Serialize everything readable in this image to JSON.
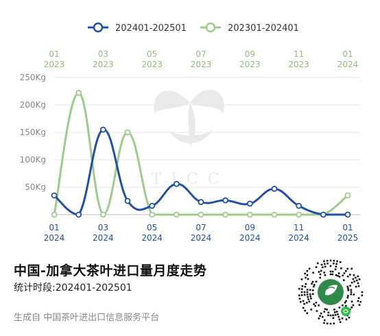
{
  "chart_data": {
    "type": "line",
    "title": "中国-加拿大茶叶进口量月度走势",
    "subtitle": "统计时段:202401-202501",
    "ylim": [
      0,
      250
    ],
    "yticks": [
      0,
      50,
      100,
      150,
      200,
      250
    ],
    "ytick_labels": [
      "",
      "50Kg",
      "100Kg",
      "150Kg",
      "200Kg",
      "250Kg"
    ],
    "grid": true,
    "legend_position": "top",
    "bottom_axis_ticks": [
      {
        "index": 0,
        "month": "01",
        "year": "2024"
      },
      {
        "index": 2,
        "month": "03",
        "year": "2024"
      },
      {
        "index": 4,
        "month": "05",
        "year": "2024"
      },
      {
        "index": 6,
        "month": "07",
        "year": "2024"
      },
      {
        "index": 8,
        "month": "09",
        "year": "2024"
      },
      {
        "index": 10,
        "month": "11",
        "year": "2024"
      },
      {
        "index": 12,
        "month": "01",
        "year": "2025"
      }
    ],
    "top_axis_ticks": [
      {
        "index": 0,
        "month": "01",
        "year": "2023"
      },
      {
        "index": 2,
        "month": "03",
        "year": "2023"
      },
      {
        "index": 4,
        "month": "05",
        "year": "2023"
      },
      {
        "index": 6,
        "month": "07",
        "year": "2023"
      },
      {
        "index": 8,
        "month": "09",
        "year": "2023"
      },
      {
        "index": 10,
        "month": "11",
        "year": "2023"
      },
      {
        "index": 12,
        "month": "01",
        "year": "2024"
      }
    ],
    "series": [
      {
        "name": "202401-202501",
        "color": "#1f4fa8",
        "values": [
          35,
          0,
          155,
          25,
          16,
          56,
          23,
          26,
          20,
          47,
          16,
          0,
          0
        ]
      },
      {
        "name": "202301-202401",
        "color": "#9ccb8a",
        "values": [
          0,
          222,
          0,
          150,
          0,
          0,
          0,
          0,
          0,
          0,
          0,
          0,
          35
        ]
      }
    ]
  },
  "footer": {
    "source": "生成自 中国茶叶进出口信息服务平台",
    "qr_icon": "mini-program-qr-icon"
  },
  "watermark": {
    "text": "TICC"
  }
}
